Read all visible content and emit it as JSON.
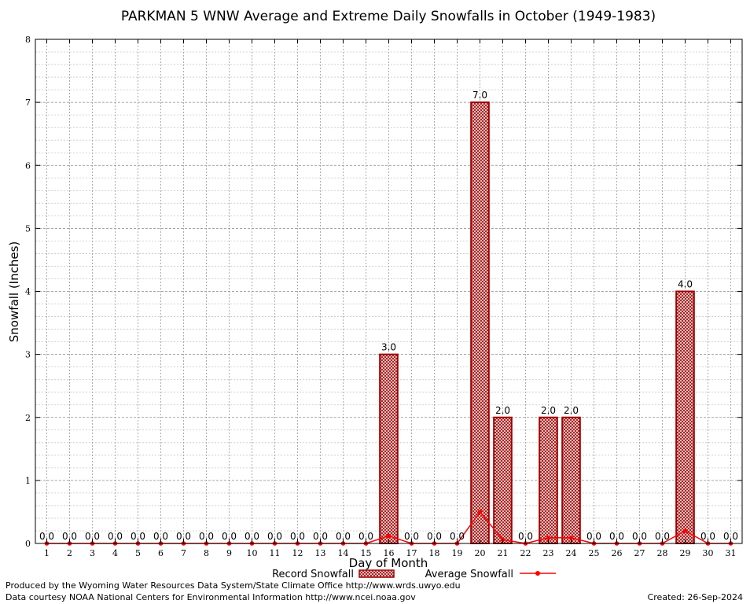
{
  "chart_data": {
    "type": "bar",
    "title": "PARKMAN 5 WNW Average and Extreme Daily Snowfalls in October (1949-1983)",
    "xlabel": "Day of Month",
    "ylabel": "Snowfall (Inches)",
    "ylim": [
      0,
      8
    ],
    "yticks": [
      "0",
      "1",
      "2",
      "3",
      "4",
      "5",
      "6",
      "7",
      "8"
    ],
    "categories": [
      "1",
      "2",
      "3",
      "4",
      "5",
      "6",
      "7",
      "8",
      "9",
      "10",
      "11",
      "12",
      "13",
      "14",
      "15",
      "16",
      "17",
      "18",
      "19",
      "20",
      "21",
      "22",
      "23",
      "24",
      "25",
      "26",
      "27",
      "28",
      "29",
      "30",
      "31"
    ],
    "series": [
      {
        "name": "Record Snowfall",
        "kind": "bar",
        "color": "#a00000",
        "values": [
          0,
          0,
          0,
          0,
          0,
          0,
          0,
          0,
          0,
          0,
          0,
          0,
          0,
          0,
          0,
          3.0,
          0,
          0,
          0,
          7.0,
          2.0,
          0,
          2.0,
          2.0,
          0,
          0,
          0,
          0,
          4.0,
          0,
          0
        ],
        "labels": [
          "0.0",
          "0.0",
          "0.0",
          "0.0",
          "0.0",
          "0.0",
          "0.0",
          "0.0",
          "0.0",
          "0.0",
          "0.0",
          "0.0",
          "0.0",
          "0.0",
          "0.0",
          "3.0",
          "0.0",
          "0.0",
          "0.0",
          "7.0",
          "2.0",
          "0.0",
          "2.0",
          "2.0",
          "0.0",
          "0.0",
          "0.0",
          "0.0",
          "4.0",
          "0.0",
          "0.0"
        ]
      },
      {
        "name": "Average Snowfall",
        "kind": "line",
        "color": "#ff0000",
        "values": [
          0,
          0,
          0,
          0,
          0,
          0,
          0,
          0,
          0,
          0,
          0,
          0,
          0,
          0,
          0,
          0.12,
          0,
          0,
          0,
          0.5,
          0.06,
          0,
          0.09,
          0.09,
          0,
          0,
          0,
          0,
          0.2,
          0,
          0
        ]
      }
    ],
    "grid": true,
    "legend_position": "bottom"
  },
  "footer": {
    "producer": "Produced by the Wyoming Water Resources Data System/State Climate Office http://www.wrds.uwyo.edu",
    "source": "Data courtesy NOAA National Centers for Environmental Information http://www.ncei.noaa.gov",
    "created": "Created: 26-Sep-2024"
  }
}
